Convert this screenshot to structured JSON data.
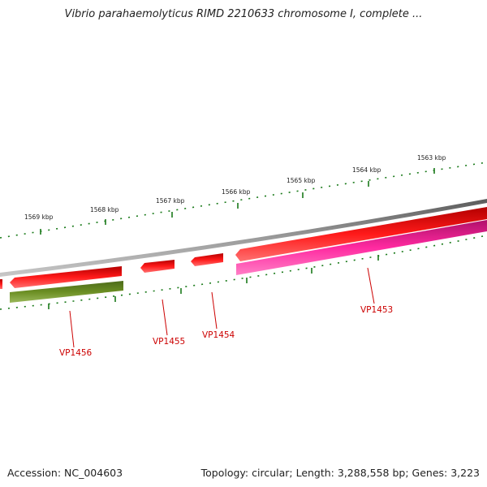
{
  "title": "Vibrio parahaemolyticus RIMD 2210633 chromosome I, complete ...",
  "footer": {
    "accession": "Accession: NC_004603",
    "summary": "Topology: circular; Length: 3,288,558 bp; Genes: 3,223"
  },
  "scale_labels": [
    "1569 kbp",
    "1568 kbp",
    "1567 kbp",
    "1566 kbp",
    "1565 kbp",
    "1564 kbp",
    "1563 kbp"
  ],
  "genes": [
    {
      "label": "VP1453",
      "color": "#ff0000",
      "track": "outer"
    },
    {
      "label": "VP1454",
      "color": "#ff0000",
      "track": "outer"
    },
    {
      "label": "VP1455",
      "color": "#ff0000",
      "track": "outer"
    },
    {
      "label": "VP1456",
      "color": "#ff0000",
      "track": "outer"
    }
  ],
  "features": [
    {
      "name": "magenta-feature",
      "color": "#ff1493",
      "track": "inner"
    },
    {
      "name": "olive-feature",
      "color": "#6b8e23",
      "track": "inner"
    }
  ],
  "colors": {
    "backbone": "#808080",
    "ticks": "#1a7a1a",
    "gene": "#ff0000",
    "label": "#cc0000"
  }
}
